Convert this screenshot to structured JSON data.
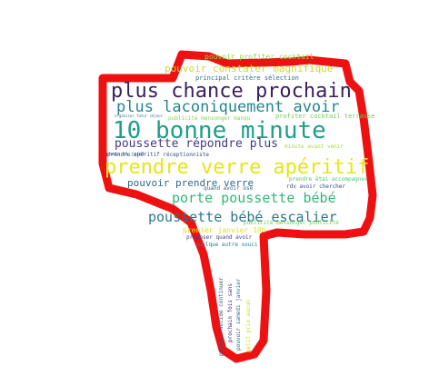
{
  "cloud": {
    "words": [
      {
        "text": "plus chance prochain",
        "color": "#3b1f5e"
      },
      {
        "text": "10 bonne minute",
        "color": "#1f9e89"
      },
      {
        "text": "prendre verre apéritif",
        "color": "#e8e419"
      },
      {
        "text": "plus laconiquement avoir",
        "color": "#25858e"
      },
      {
        "text": "poussette bébé escalier",
        "color": "#2a788e"
      },
      {
        "text": "porte poussette bébé",
        "color": "#35b779"
      },
      {
        "text": "poussette répondre plus",
        "color": "#443983"
      },
      {
        "text": "pouvoir constater magnifique",
        "color": "#c2df23"
      },
      {
        "text": "pouvoir prendre verre",
        "color": "#31688e"
      },
      {
        "text": "pouvoir profiter cocktail",
        "color": "#90d743"
      },
      {
        "text": "principal critère sélection",
        "color": "#2c728e"
      },
      {
        "text": "premier janvier 10h",
        "color": "#dde318"
      },
      {
        "text": "profiter cocktail terrasse",
        "color": "#6ece58"
      },
      {
        "text": "publicité mensonger manqu",
        "color": "#86d549"
      },
      {
        "text": "prendre apéritif réceptionniste",
        "color": "#3e4989"
      },
      {
        "text": "prendre étai accompagner",
        "color": "#52c569"
      },
      {
        "text": "publicité mensonger publicité",
        "color": "#6ece58"
      },
      {
        "text": "minute avant venir",
        "color": "#a8db34"
      },
      {
        "text": "rdv avoir chercher",
        "color": "#3e4a89"
      },
      {
        "text": "quand avoir ose",
        "color": "#31688e"
      },
      {
        "text": "proposer quand avoir",
        "color": "#404387"
      },
      {
        "text": "quelque autre souci",
        "color": "#277f8e"
      },
      {
        "text": "photo ci joint",
        "color": "#31688e"
      },
      {
        "text": "organiser futur séjour",
        "color": "#2a788e"
      },
      {
        "text": "pouvoir décide continuer",
        "color": "#3b528b"
      },
      {
        "text": "prochain fois sans",
        "color": "#472d7b"
      },
      {
        "text": "pouvoir samedi janvier",
        "color": "#2c728e"
      },
      {
        "text": "petit prix aucun",
        "color": "#c8e020"
      }
    ]
  }
}
